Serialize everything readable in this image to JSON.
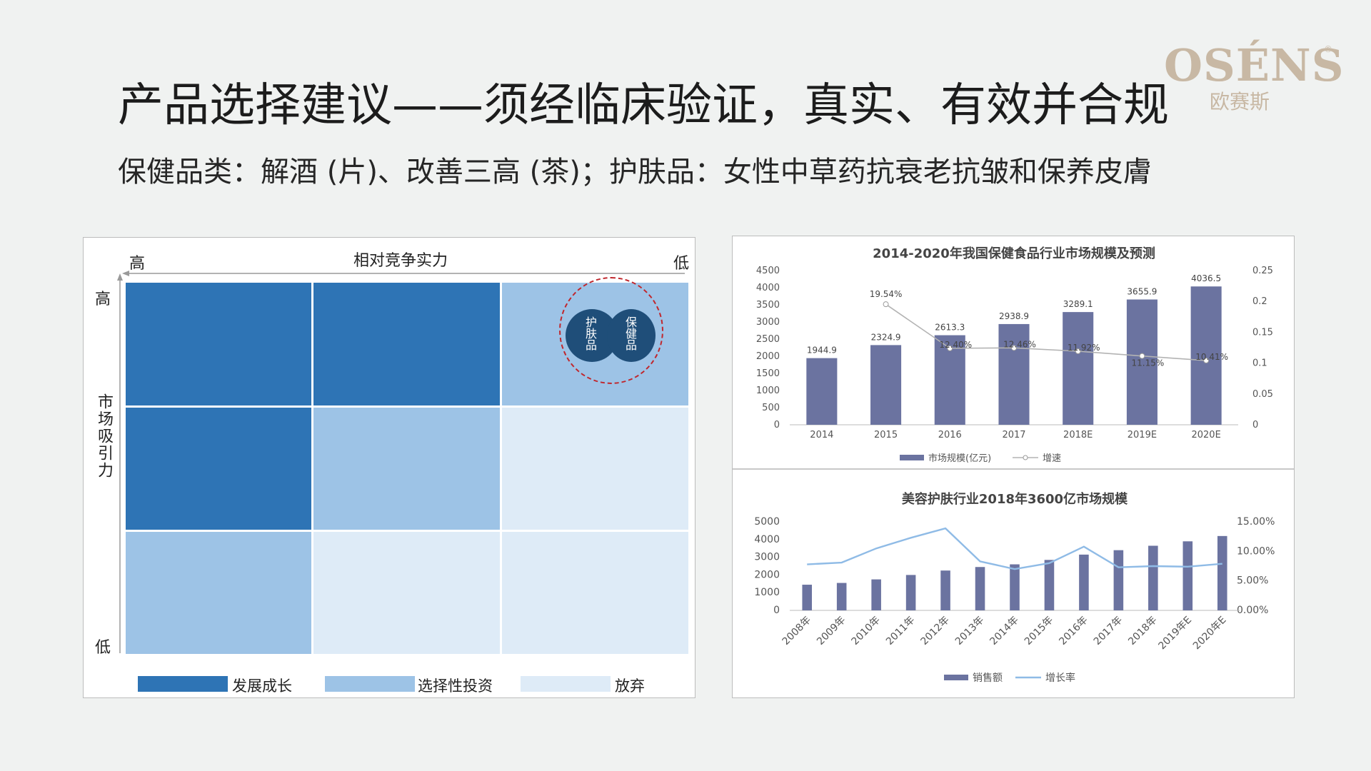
{
  "logo": {
    "main": "OSÉNS",
    "reg": "®",
    "sub": "欧赛斯"
  },
  "title": "产品选择建议——须经临床验证，真实、有效并合规",
  "subtitle": "保健品类：解酒 (片)、改善三高 (茶)；护肤品：女性中草药抗衰老抗皱和保养皮膚",
  "matrix": {
    "x_axis": {
      "label": "相对竞争实力",
      "high": "高",
      "low": "低"
    },
    "y_axis": {
      "label": "市场吸引力",
      "high": "高",
      "low": "低"
    },
    "circle_left": "护肤品",
    "circle_right": "保健品",
    "legend": [
      {
        "label": "发展成长",
        "color": "#2e74b5"
      },
      {
        "label": "选择性投资",
        "color": "#9dc3e6"
      },
      {
        "label": "放弃",
        "color": "#deebf7"
      }
    ]
  },
  "chart_data": [
    {
      "type": "bar",
      "title": "2014-2020年我国保健食品行业市场规模及预测",
      "categories": [
        "2014",
        "2015",
        "2016",
        "2017",
        "2018E",
        "2019E",
        "2020E"
      ],
      "series": [
        {
          "name": "市场规模(亿元)",
          "type": "bar",
          "axis": "left",
          "values": [
            1944.9,
            2324.9,
            2613.3,
            2938.9,
            3289.1,
            3655.9,
            4036.5
          ],
          "labels": [
            "1944.9",
            "2324.9",
            "2613.3",
            "2938.9",
            "3289.1",
            "3655.9",
            "4036.5"
          ],
          "color": "#6b73a0"
        },
        {
          "name": "增速",
          "type": "line",
          "axis": "right",
          "values": [
            null,
            0.1954,
            0.124,
            0.1246,
            0.1192,
            0.1115,
            0.1041
          ],
          "labels": [
            "",
            "19.54%",
            "12.40%",
            "12.46%",
            "11.92%",
            "11.15%",
            "10.41%"
          ],
          "color": "#b3b3b3"
        }
      ],
      "ylim_left": [
        0,
        4500
      ],
      "yticks_left": [
        "0",
        "500",
        "1000",
        "1500",
        "2000",
        "2500",
        "3000",
        "3500",
        "4000",
        "4500"
      ],
      "ylim_right": [
        0,
        0.25
      ],
      "yticks_right": [
        "0",
        "0.05",
        "0.1",
        "0.15",
        "0.2",
        "0.25"
      ],
      "legend_position": "bottom"
    },
    {
      "type": "bar",
      "title": "美容护肤行业2018年3600亿市场规模",
      "categories": [
        "2008年",
        "2009年",
        "2010年",
        "2011年",
        "2012年",
        "2013年",
        "2014年",
        "2015年",
        "2016年",
        "2017年",
        "2018年",
        "2019年E",
        "2020年E"
      ],
      "series": [
        {
          "name": "销售额",
          "type": "bar",
          "axis": "left",
          "values": [
            1450,
            1550,
            1750,
            2000,
            2250,
            2450,
            2600,
            2850,
            3150,
            3400,
            3650,
            3900,
            4200
          ],
          "color": "#6b73a0"
        },
        {
          "name": "增长率",
          "type": "line",
          "axis": "right",
          "values": [
            0.078,
            0.081,
            0.105,
            0.123,
            0.139,
            0.083,
            0.07,
            0.08,
            0.108,
            0.073,
            0.075,
            0.074,
            0.079
          ],
          "color": "#8fbbe6"
        }
      ],
      "ylim_left": [
        0,
        5000
      ],
      "yticks_left": [
        "0",
        "1000",
        "2000",
        "3000",
        "4000",
        "5000"
      ],
      "ylim_right": [
        0,
        0.15
      ],
      "yticks_right": [
        "0.00%",
        "5.00%",
        "10.00%",
        "15.00%"
      ],
      "legend_position": "bottom"
    }
  ]
}
